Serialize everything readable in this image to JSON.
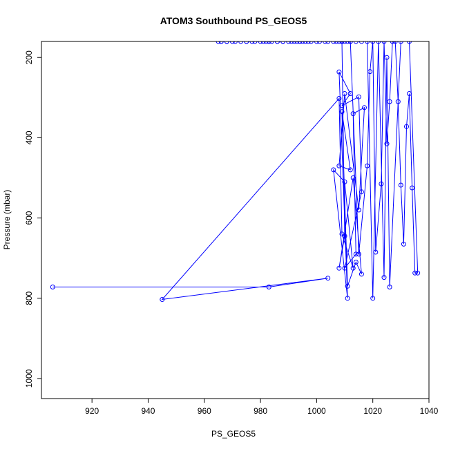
{
  "chart_data": {
    "type": "line",
    "title": "ATOM3 Southbound PS_GEOS5",
    "xlabel": "PS_GEOS5",
    "ylabel": "Pressure (mbar)",
    "xlim": [
      902,
      1040
    ],
    "ylim": [
      1050,
      160
    ],
    "y_inverted": true,
    "x_ticks": [
      920,
      940,
      960,
      980,
      1000,
      1020,
      1040
    ],
    "y_ticks": [
      200,
      400,
      600,
      800,
      1000
    ],
    "line_color": "#0000ff",
    "marker": "open-circle",
    "grid": false,
    "legend": "none",
    "series": [
      {
        "x": [
          906,
          983,
          1004,
          945,
          1008,
          1009,
          1013,
          1010,
          1006,
          1011,
          1008,
          1012,
          1009,
          1015,
          1016,
          1010,
          1014,
          1013,
          1017,
          1015,
          1010,
          1008,
          1012,
          1009,
          1011,
          1014,
          1016,
          1013,
          1008,
          1010,
          1009,
          1012,
          1015,
          1018,
          1019,
          1020,
          1021,
          1023,
          1024,
          1025,
          1026,
          1027,
          1028,
          1029,
          1030,
          1031,
          1032,
          1033,
          1034,
          1035,
          1036,
          1033,
          1030,
          1026,
          1025,
          1024,
          1022,
          1020,
          1018,
          1016,
          1014,
          1012,
          1009,
          1007,
          1004,
          1000,
          997,
          995,
          994,
          993,
          992,
          990,
          988,
          986,
          984,
          983,
          982,
          981,
          978,
          975,
          971,
          968,
          966,
          965,
          966,
          968,
          970,
          973,
          975,
          977,
          980,
          983,
          986,
          988,
          991,
          994,
          996,
          998,
          1001,
          1003,
          1006,
          1008,
          1009,
          1010,
          1011,
          1012
        ],
        "y": [
          772,
          772,
          750,
          803,
          302,
          640,
          725,
          510,
          480,
          800,
          236,
          290,
          320,
          298,
          535,
          725,
          690,
          340,
          325,
          580,
          290,
          470,
          480,
          335,
          770,
          710,
          740,
          500,
          725,
          645,
          160,
          160,
          690,
          470,
          235,
          160,
          685,
          515,
          160,
          415,
          310,
          160,
          160,
          310,
          518,
          665,
          372,
          290,
          525,
          737,
          737,
          160,
          160,
          772,
          200,
          748,
          160,
          800,
          160,
          160,
          160,
          160,
          160,
          160,
          160,
          160,
          160,
          160,
          160,
          160,
          160,
          160,
          160,
          160,
          160,
          160,
          160,
          160,
          160,
          160,
          160,
          160,
          160,
          160,
          160,
          160,
          160,
          160,
          160,
          160,
          160,
          160,
          160,
          160,
          160,
          160,
          160,
          160,
          160,
          160,
          160,
          160,
          160,
          160,
          160,
          160
        ]
      }
    ]
  }
}
